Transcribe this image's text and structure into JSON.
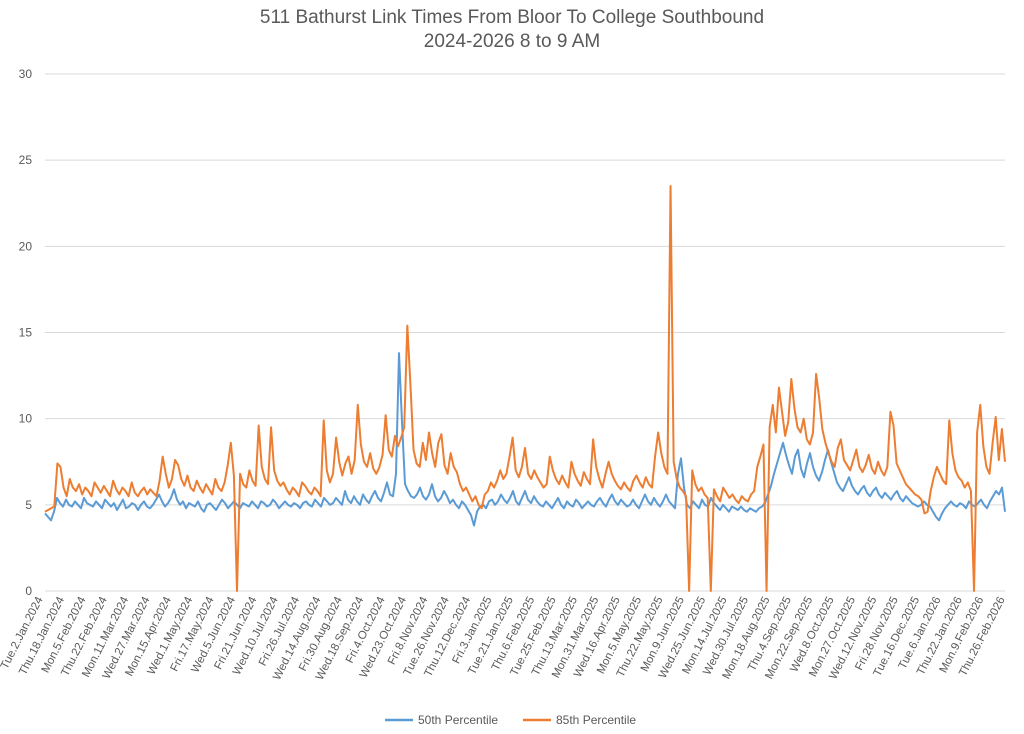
{
  "chart_data": {
    "type": "line",
    "title": "511 Bathurst Link Times From Bloor To College Southbound",
    "subtitle": "2024-2026 8 to 9 AM",
    "xlabel": "",
    "ylabel": "",
    "ylim": [
      0,
      30
    ],
    "yticks": [
      0,
      5,
      10,
      15,
      20,
      25,
      30
    ],
    "grid": true,
    "legend": "bottom",
    "x_tick_labels": [
      "Tue.2.Jan.2024",
      "Thu.18.Jan.2024",
      "Mon.5.Feb.2024",
      "Thu.22.Feb.2024",
      "Mon.11.Mar.2024",
      "Wed.27.Mar.2024",
      "Mon.15.Apr.2024",
      "Wed.1.May.2024",
      "Fri.17.May.2024",
      "Wed.5.Jun.2024",
      "Fri.21.Jun.2024",
      "Wed.10.Jul.2024",
      "Fri.26.Jul.2024",
      "Wed.14.Aug.2024",
      "Fri.30.Aug.2024",
      "Wed.18.Sep.2024",
      "Fri.4.Oct.2024",
      "Wed.23.Oct.2024",
      "Fri.8.Nov.2024",
      "Tue.26.Nov.2024",
      "Thu.12.Dec.2024",
      "Fri.3.Jan.2025",
      "Tue.21.Jan.2025",
      "Thu.6.Feb.2025",
      "Tue.25.Feb.2025",
      "Thu.13.Mar.2025",
      "Mon.31.Mar.2025",
      "Wed.16.Apr.2025",
      "Mon.5.May.2025",
      "Thu.22.May.2025",
      "Mon.9.Jun.2025",
      "Wed.25.Jun.2025",
      "Mon.14.Jul.2025",
      "Wed.30.Jul.2025",
      "Mon.18.Aug.2025",
      "Thu.4.Sep.2025",
      "Mon.22.Sep.2025",
      "Wed.8.Oct.2025",
      "Mon.27.Oct.2025",
      "Wed.12.Nov.2025",
      "Fri.28.Nov.2025",
      "Tue.16.Dec.2025",
      "Tue.6.Jan.2026",
      "Thu.22.Jan.2026",
      "Mon.9.Feb.2026",
      "Thu.26.Feb.2026"
    ],
    "series": [
      {
        "name": "50th Percentile",
        "color": "#5B9BD5",
        "values": [
          4.5,
          4.3,
          4.1,
          4.6,
          5.4,
          5.1,
          4.9,
          5.3,
          5.0,
          4.9,
          5.2,
          5.0,
          4.8,
          5.4,
          5.1,
          5.0,
          4.9,
          5.2,
          5.0,
          4.8,
          5.3,
          5.1,
          4.9,
          5.1,
          4.7,
          5.0,
          5.3,
          4.8,
          4.9,
          5.1,
          5.0,
          4.7,
          5.0,
          5.2,
          4.9,
          4.8,
          5.0,
          5.3,
          5.6,
          5.2,
          4.9,
          5.1,
          5.4,
          5.9,
          5.3,
          5.0,
          5.2,
          4.8,
          5.1,
          5.0,
          4.9,
          5.2,
          4.8,
          4.6,
          5.0,
          5.1,
          4.9,
          4.7,
          5.0,
          5.3,
          5.1,
          4.8,
          5.0,
          5.2,
          5.0,
          4.8,
          5.1,
          5.0,
          4.9,
          5.2,
          5.0,
          4.8,
          5.2,
          5.1,
          4.9,
          5.0,
          5.3,
          5.1,
          4.8,
          5.0,
          5.2,
          5.0,
          4.9,
          5.1,
          5.0,
          4.8,
          5.1,
          5.2,
          5.0,
          4.9,
          5.3,
          5.1,
          4.9,
          5.4,
          5.2,
          5.0,
          5.1,
          5.4,
          5.2,
          5.0,
          5.8,
          5.3,
          5.1,
          5.5,
          5.2,
          5.0,
          5.6,
          5.3,
          5.1,
          5.5,
          5.8,
          5.4,
          5.2,
          5.7,
          6.3,
          5.6,
          5.5,
          6.8,
          13.8,
          9.8,
          6.2,
          5.8,
          5.5,
          5.4,
          5.6,
          6.0,
          5.5,
          5.3,
          5.6,
          6.2,
          5.5,
          5.2,
          5.4,
          5.8,
          5.5,
          5.1,
          5.3,
          5.0,
          4.8,
          5.2,
          5.0,
          4.7,
          4.4,
          3.8,
          4.6,
          4.9,
          5.0,
          4.8,
          5.2,
          5.3,
          5.0,
          5.2,
          5.6,
          5.3,
          5.1,
          5.4,
          5.8,
          5.2,
          5.0,
          5.4,
          5.8,
          5.3,
          5.1,
          5.5,
          5.2,
          5.0,
          4.9,
          5.2,
          5.0,
          4.8,
          5.1,
          5.4,
          5.0,
          4.8,
          5.2,
          5.0,
          4.9,
          5.3,
          5.1,
          4.8,
          5.0,
          5.2,
          5.0,
          4.9,
          5.2,
          5.4,
          5.1,
          4.9,
          5.3,
          5.6,
          5.2,
          5.0,
          5.3,
          5.1,
          4.9,
          5.0,
          5.3,
          5.0,
          4.8,
          5.2,
          5.6,
          5.2,
          5.0,
          5.4,
          5.1,
          4.9,
          5.2,
          5.6,
          5.2,
          5.0,
          4.8,
          6.8,
          7.7,
          6.0,
          5.0,
          4.8,
          5.2,
          5.0,
          4.8,
          5.3,
          5.0,
          4.9,
          5.4,
          5.1,
          4.9,
          4.7,
          5.0,
          4.8,
          4.6,
          4.9,
          4.8,
          4.7,
          4.9,
          4.7,
          4.6,
          4.8,
          4.7,
          4.6,
          4.8,
          4.9,
          5.1,
          5.6,
          6.1,
          6.8,
          7.4,
          8.0,
          8.6,
          7.9,
          7.3,
          6.8,
          7.8,
          8.2,
          7.1,
          6.6,
          7.4,
          8.0,
          7.2,
          6.7,
          6.4,
          6.9,
          7.6,
          8.2,
          7.5,
          6.9,
          6.3,
          6.0,
          5.8,
          6.2,
          6.6,
          6.1,
          5.8,
          5.6,
          5.9,
          6.1,
          5.7,
          5.5,
          5.8,
          6.0,
          5.6,
          5.4,
          5.7,
          5.5,
          5.3,
          5.6,
          5.8,
          5.4,
          5.2,
          5.5,
          5.3,
          5.1,
          5.0,
          4.9,
          5.0,
          5.2,
          5.0,
          4.9,
          4.6,
          4.3,
          4.1,
          4.5,
          4.8,
          5.0,
          5.2,
          5.0,
          4.9,
          5.1,
          5.0,
          4.8,
          5.2,
          5.0,
          4.9,
          5.1,
          5.3,
          5.0,
          4.8,
          5.2,
          5.5,
          5.8,
          5.6,
          6.0,
          4.6
        ]
      },
      {
        "name": "85th Percentile",
        "color": "#ED7D31",
        "values": [
          4.6,
          4.7,
          4.8,
          4.9,
          7.4,
          7.2,
          6.0,
          5.5,
          6.5,
          6.0,
          5.8,
          6.2,
          5.6,
          6.0,
          5.8,
          5.5,
          6.3,
          6.0,
          5.7,
          6.1,
          5.8,
          5.5,
          6.4,
          5.9,
          5.6,
          6.0,
          5.8,
          5.5,
          6.3,
          5.7,
          5.5,
          5.8,
          6.0,
          5.6,
          5.9,
          5.7,
          5.5,
          6.4,
          7.8,
          6.8,
          6.0,
          6.5,
          7.6,
          7.3,
          6.5,
          6.1,
          6.7,
          6.0,
          5.8,
          6.4,
          6.0,
          5.7,
          6.2,
          5.9,
          5.6,
          6.5,
          6.0,
          5.8,
          6.3,
          7.3,
          8.6,
          6.7,
          0.0,
          6.8,
          6.2,
          6.0,
          7.0,
          6.4,
          6.1,
          9.6,
          7.2,
          6.5,
          6.2,
          9.5,
          7.0,
          6.4,
          6.1,
          6.3,
          5.9,
          5.6,
          6.0,
          5.8,
          5.5,
          6.3,
          6.1,
          5.8,
          5.6,
          6.0,
          5.8,
          5.5,
          9.9,
          7.0,
          6.3,
          6.8,
          8.9,
          7.5,
          6.7,
          7.4,
          7.8,
          6.8,
          7.6,
          10.8,
          8.5,
          7.5,
          7.2,
          8.0,
          7.1,
          6.8,
          7.2,
          7.9,
          10.2,
          8.2,
          7.8,
          9.0,
          8.4,
          8.9,
          9.5,
          15.4,
          12.0,
          8.2,
          7.4,
          7.2,
          8.6,
          7.6,
          9.2,
          8.0,
          7.2,
          8.6,
          9.1,
          7.3,
          6.8,
          8.0,
          7.2,
          6.9,
          6.2,
          5.8,
          6.0,
          5.6,
          5.2,
          5.5,
          5.0,
          4.8,
          5.6,
          5.8,
          6.3,
          6.0,
          6.4,
          7.0,
          6.5,
          6.8,
          7.8,
          8.9,
          7.0,
          6.6,
          7.2,
          8.3,
          6.8,
          6.5,
          7.0,
          6.6,
          6.3,
          6.0,
          6.2,
          7.8,
          7.0,
          6.5,
          6.2,
          6.7,
          6.3,
          6.0,
          7.5,
          6.8,
          6.4,
          6.1,
          6.9,
          6.5,
          6.2,
          8.8,
          7.2,
          6.5,
          6.0,
          6.8,
          7.5,
          6.8,
          6.4,
          6.1,
          5.9,
          6.3,
          6.0,
          5.8,
          6.4,
          6.7,
          6.3,
          6.0,
          6.6,
          6.2,
          6.0,
          7.8,
          9.2,
          8.0,
          7.2,
          6.8,
          23.5,
          7.5,
          6.5,
          6.0,
          5.8,
          5.5,
          0.0,
          7.0,
          6.2,
          5.8,
          6.0,
          5.6,
          5.4,
          0.0,
          5.9,
          5.5,
          5.2,
          6.0,
          5.7,
          5.4,
          5.6,
          5.3,
          5.1,
          5.5,
          5.3,
          5.2,
          5.6,
          5.8,
          7.2,
          7.8,
          8.5,
          0.0,
          9.5,
          10.8,
          9.2,
          11.8,
          10.4,
          9.0,
          9.8,
          12.3,
          10.6,
          9.5,
          9.2,
          10.0,
          8.8,
          8.5,
          9.2,
          12.6,
          11.2,
          9.4,
          8.6,
          8.0,
          7.5,
          7.2,
          8.3,
          8.8,
          7.6,
          7.3,
          7.0,
          7.6,
          8.2,
          7.2,
          6.9,
          7.3,
          7.9,
          7.1,
          6.8,
          7.5,
          7.0,
          6.7,
          7.2,
          10.4,
          9.6,
          7.4,
          7.0,
          6.6,
          6.2,
          6.0,
          5.8,
          5.6,
          5.5,
          5.3,
          4.5,
          4.6,
          5.8,
          6.6,
          7.2,
          6.8,
          6.4,
          6.2,
          9.9,
          8.0,
          7.0,
          6.6,
          6.4,
          6.0,
          6.3,
          5.8,
          0.0,
          9.2,
          10.8,
          8.4,
          7.2,
          6.8,
          8.6,
          10.1,
          7.6,
          9.4,
          7.5
        ]
      }
    ]
  }
}
